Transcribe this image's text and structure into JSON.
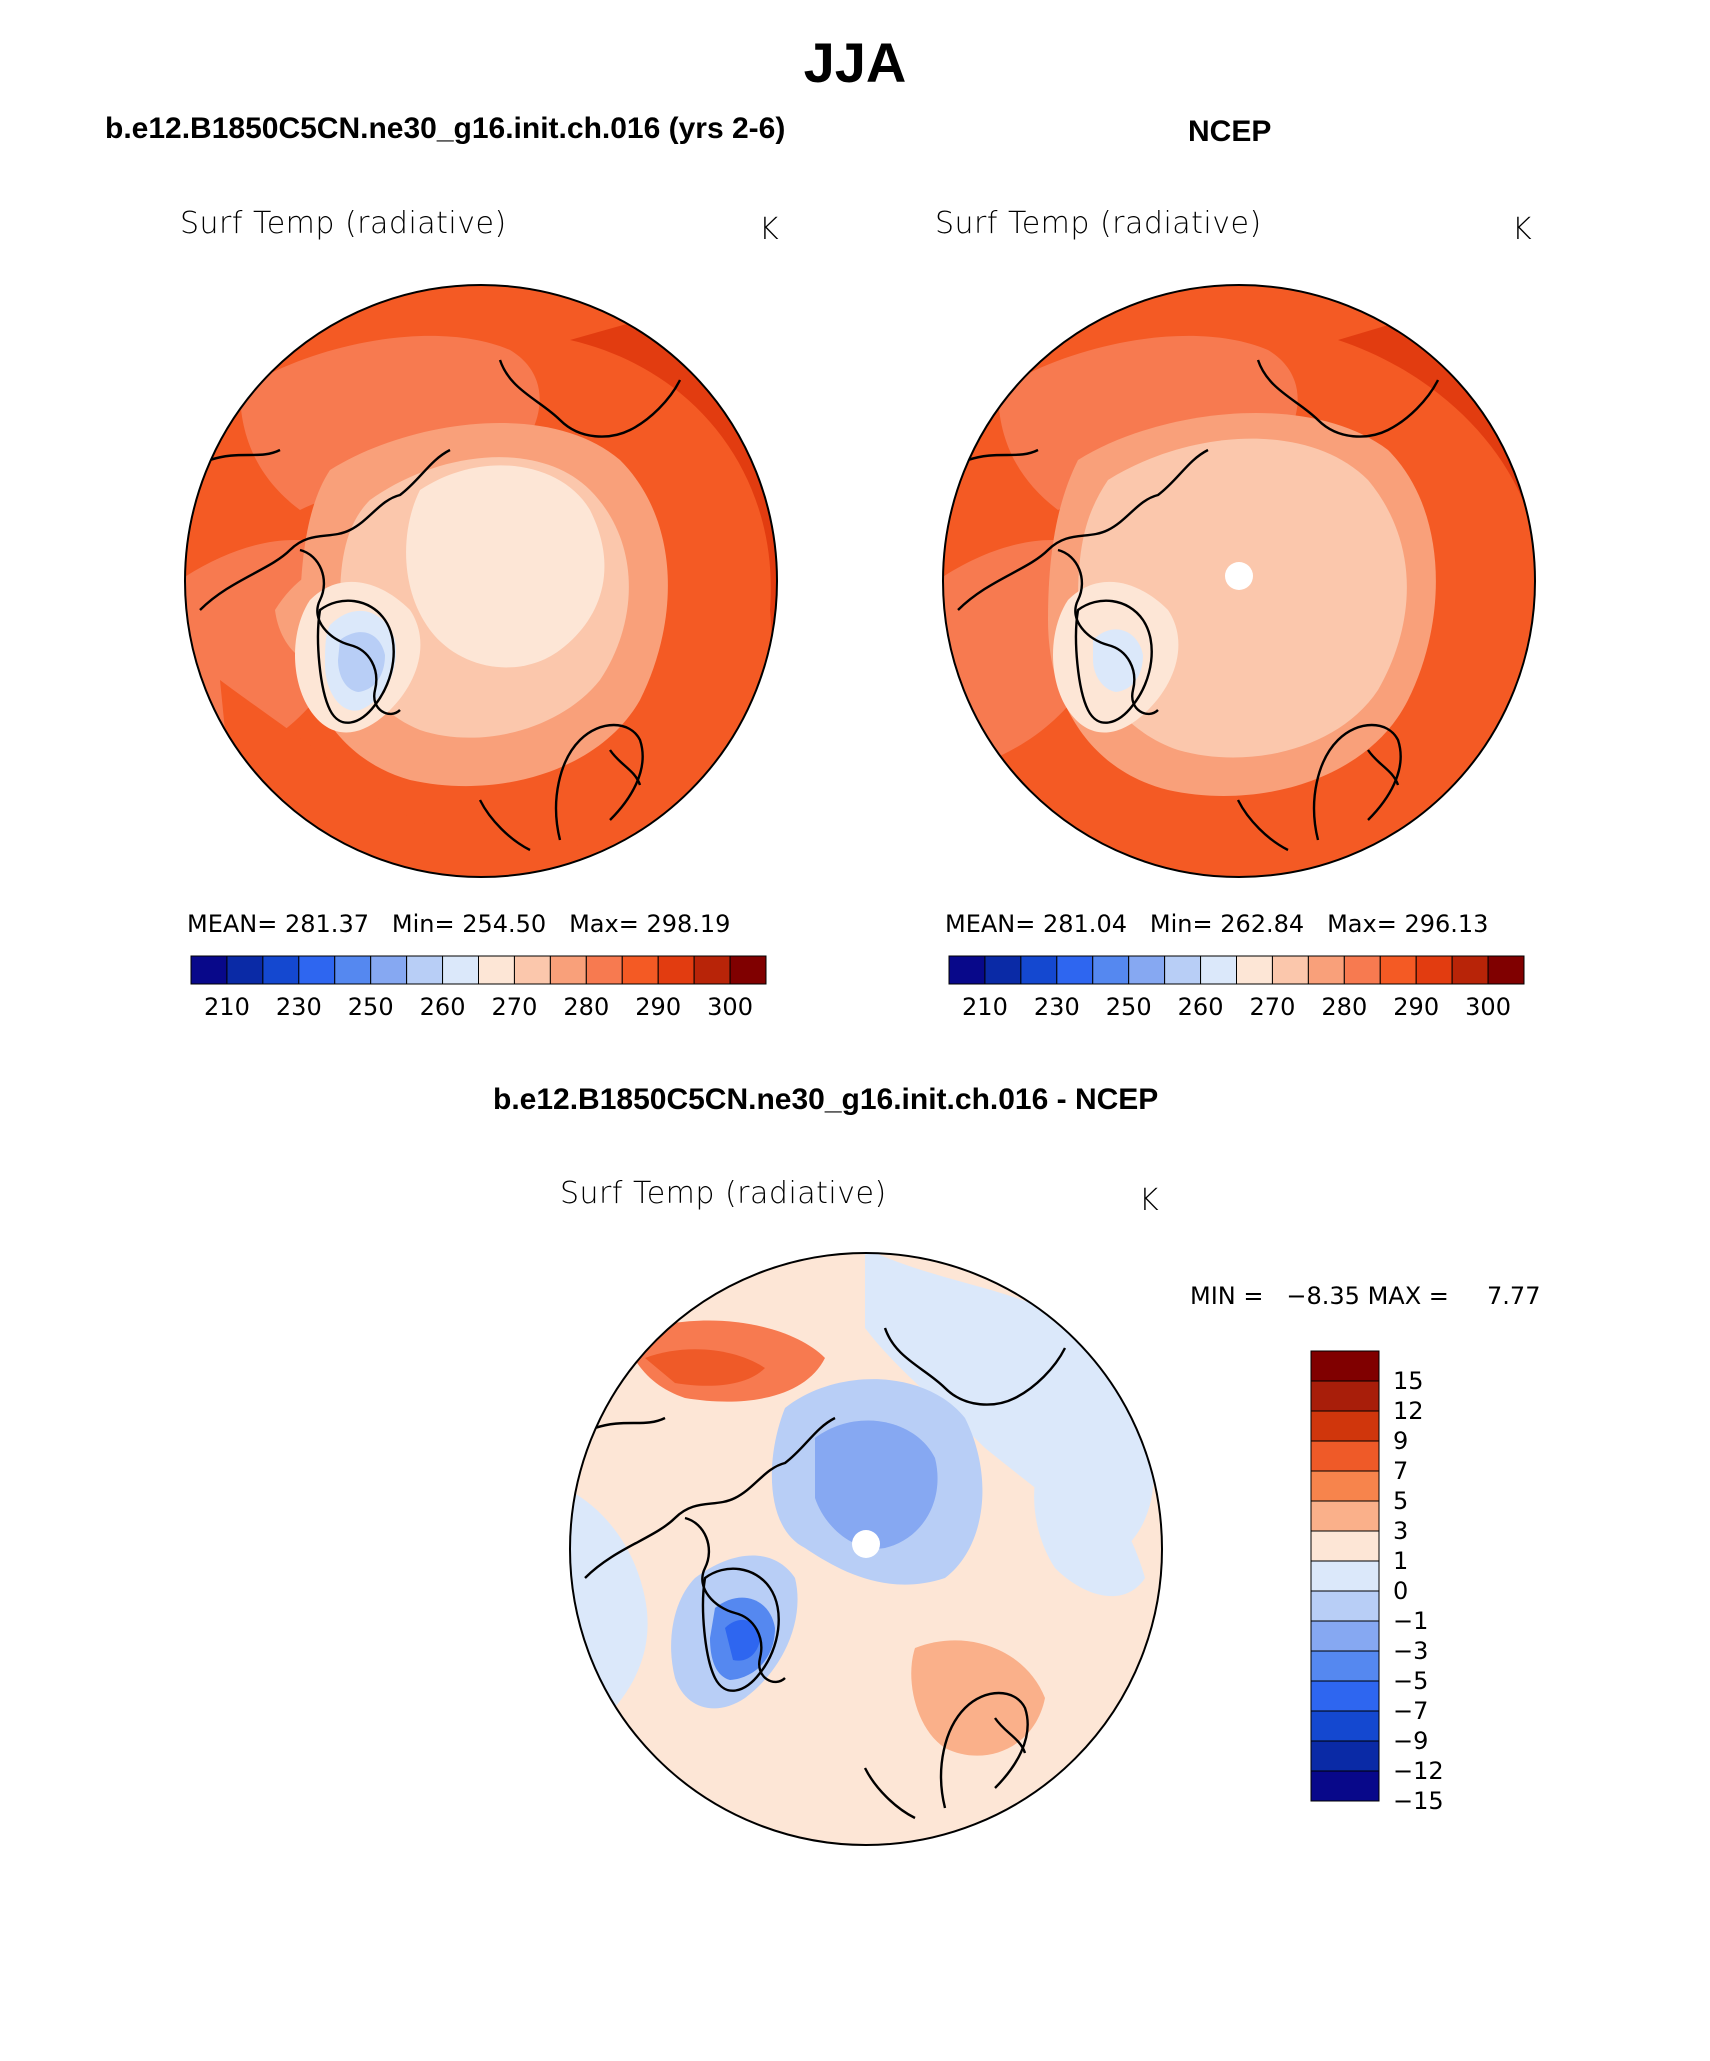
{
  "main_title": "JJA",
  "panels": [
    {
      "case_title": "b.e12.B1850C5CN.ne30_g16.init.ch.016 (yrs 2-6)",
      "field_label": "Surf Temp (radiative)",
      "units": "K",
      "stats": {
        "mean_label": "MEAN=",
        "mean": "281.37",
        "min_label": "Min=",
        "min": "254.50",
        "max_label": "Max=",
        "max": "298.19"
      },
      "colorbar_labels": [
        "210",
        "230",
        "250",
        "260",
        "270",
        "280",
        "290",
        "300"
      ]
    },
    {
      "case_title": "NCEP",
      "field_label": "Surf Temp (radiative)",
      "units": "K",
      "stats": {
        "mean_label": "MEAN=",
        "mean": "281.04",
        "min_label": "Min=",
        "min": "262.84",
        "max_label": "Max=",
        "max": "296.13"
      },
      "colorbar_labels": [
        "210",
        "230",
        "250",
        "260",
        "270",
        "280",
        "290",
        "300"
      ]
    }
  ],
  "diff_panel": {
    "case_title": "b.e12.B1850C5CN.ne30_g16.init.ch.016 - NCEP",
    "field_label": "Surf Temp (radiative)",
    "units": "K",
    "min_label": "MIN =",
    "min": "−8.35",
    "max_label": "MAX =",
    "max": "7.77",
    "colorbar_labels": [
      "15",
      "12",
      "9",
      "7",
      "5",
      "3",
      "1",
      "0",
      "−1",
      "−3",
      "−5",
      "−7",
      "−9",
      "−12",
      "−15"
    ]
  },
  "colors": {
    "abs_scale": [
      "#08088a",
      "#0a2aa6",
      "#1448d0",
      "#2e66f0",
      "#5588f0",
      "#86a8f2",
      "#b8cef6",
      "#dbe8fa",
      "#fde6d6",
      "#fbc7ac",
      "#f9a07a",
      "#f77a50",
      "#f45a24",
      "#e23c10",
      "#b82408",
      "#800000"
    ],
    "diff_scale": [
      "#800000",
      "#a81e0a",
      "#d0360c",
      "#ef5a28",
      "#f7844c",
      "#fab08a",
      "#fde6d6",
      "#dbe8fa",
      "#b8cef6",
      "#86a8f2",
      "#5588f0",
      "#2e66f0",
      "#1448d0",
      "#0a2aa6",
      "#08088a"
    ]
  }
}
